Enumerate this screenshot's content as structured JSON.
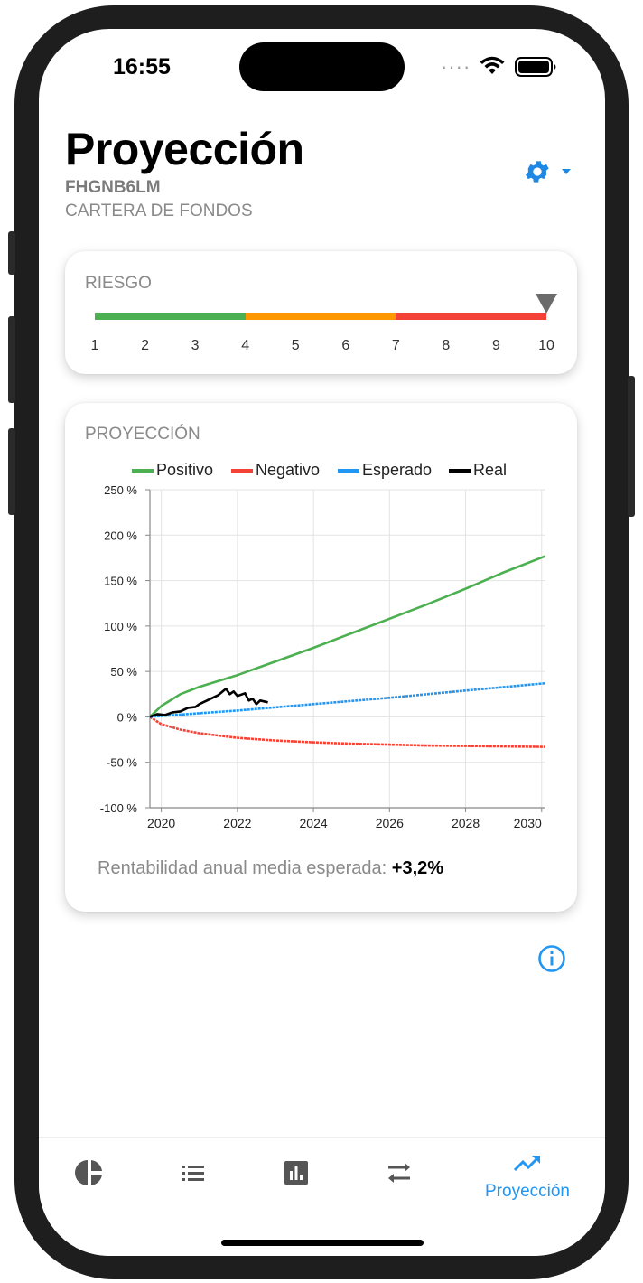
{
  "status_bar": {
    "time": "16:55"
  },
  "header": {
    "title": "Proyección",
    "code": "FHGNB6LM",
    "subtitle": "CARTERA DE FONDOS"
  },
  "risk": {
    "label": "RIESGO",
    "scale": [
      "1",
      "2",
      "3",
      "4",
      "5",
      "6",
      "7",
      "8",
      "9",
      "10"
    ],
    "selected_level": 10,
    "segments": [
      {
        "from": 1,
        "to": 4,
        "color": "#4caf50"
      },
      {
        "from": 4,
        "to": 7,
        "color": "#ff9800"
      },
      {
        "from": 7,
        "to": 10,
        "color": "#f44336"
      }
    ]
  },
  "projection": {
    "label": "PROYECCIÓN",
    "return_label": "Rentabilidad anual media esperada: ",
    "return_value": "+3,2%"
  },
  "chart_data": {
    "type": "line",
    "x_ticks": [
      "2020",
      "2022",
      "2024",
      "2026",
      "2028",
      "2030"
    ],
    "y_ticks": [
      "250 %",
      "200 %",
      "150 %",
      "100 %",
      "50 %",
      "0 %",
      "-50 %",
      "-100 %"
    ],
    "xlim": [
      2019.7,
      2030.1
    ],
    "ylim": [
      -100,
      250
    ],
    "grid": true,
    "legend_position": "top",
    "series": [
      {
        "name": "Positivo",
        "color": "#4caf50",
        "x": [
          2019.7,
          2020,
          2020.5,
          2021,
          2022,
          2023,
          2024,
          2025,
          2026,
          2027,
          2028,
          2029,
          2030.1
        ],
        "y": [
          0,
          12,
          25,
          33,
          46,
          61,
          76,
          92,
          108,
          124,
          141,
          159,
          177
        ]
      },
      {
        "name": "Negativo",
        "color": "#f44336",
        "x": [
          2019.7,
          2020,
          2020.5,
          2021,
          2022,
          2023,
          2024,
          2025,
          2026,
          2027,
          2028,
          2029,
          2030.1
        ],
        "y": [
          0,
          -8,
          -14,
          -18,
          -23,
          -26,
          -28,
          -29.5,
          -30.5,
          -31.5,
          -32,
          -32.5,
          -33
        ]
      },
      {
        "name": "Esperado",
        "color": "#2196f3",
        "x": [
          2019.7,
          2021,
          2022,
          2024,
          2026,
          2028,
          2030.1
        ],
        "y": [
          0,
          4,
          7,
          14,
          21,
          29,
          37
        ]
      },
      {
        "name": "Real",
        "color": "#000000",
        "x": [
          2019.7,
          2019.9,
          2020.1,
          2020.3,
          2020.5,
          2020.7,
          2020.9,
          2021.0,
          2021.2,
          2021.4,
          2021.5,
          2021.7,
          2021.8,
          2021.9,
          2022.0,
          2022.2,
          2022.3,
          2022.4,
          2022.5,
          2022.6,
          2022.8
        ],
        "y": [
          0,
          3,
          2,
          5,
          6,
          10,
          11,
          14,
          18,
          22,
          24,
          31,
          25,
          28,
          23,
          26,
          18,
          20,
          14,
          18,
          16
        ]
      }
    ]
  },
  "tabs": [
    {
      "label": "",
      "icon": "pie-chart-icon"
    },
    {
      "label": "",
      "icon": "list-icon"
    },
    {
      "label": "",
      "icon": "bar-chart-icon"
    },
    {
      "label": "",
      "icon": "swap-icon"
    },
    {
      "label": "Proyección",
      "icon": "trending-up-icon",
      "active": true
    }
  ],
  "colors": {
    "accent": "#2196f3",
    "gear": "#1e88e5"
  }
}
